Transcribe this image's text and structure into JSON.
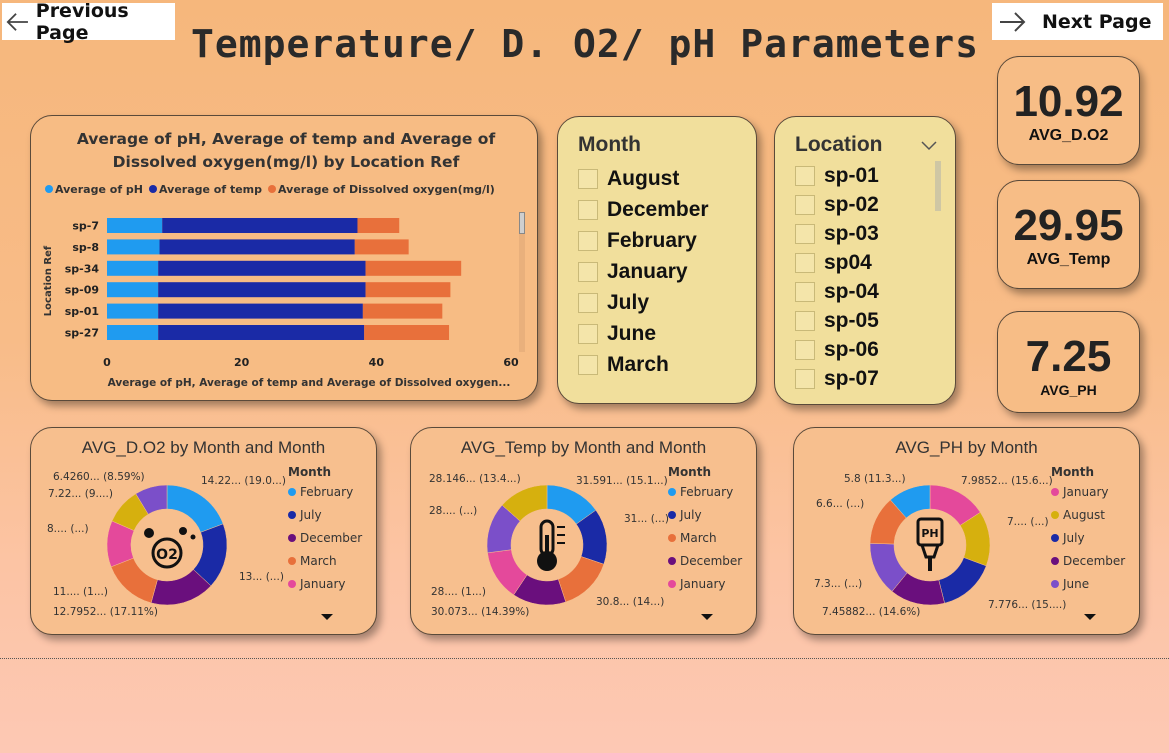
{
  "nav": {
    "prev_label": "Previous Page",
    "next_label": "Next Page"
  },
  "title": "Temperature/ D. O2/ pH Parameters",
  "kpis": [
    {
      "value": "10.92",
      "label": "AVG_D.O2"
    },
    {
      "value": "29.95",
      "label": "AVG_Temp"
    },
    {
      "value": "7.25",
      "label": "AVG_PH"
    }
  ],
  "colors": {
    "blue_light": "#1f9bf0",
    "blue_dark": "#1a2aa6",
    "orange": "#e8703b",
    "purple": "#6a0f7d",
    "pink": "#e4499b",
    "gold": "#d6b00e",
    "violet": "#7b4fc9"
  },
  "bar_chart": {
    "title": "Average of pH, Average of temp and Average of Dissolved oxygen(mg/l) by Location Ref",
    "legend": [
      "Average of pH",
      "Average of temp",
      "Average of Dissolved oxygen(mg/l)"
    ],
    "ylabel": "Location Ref",
    "xlabel": "Average of pH, Average of temp and Average of Dissolved oxygen...",
    "ticks": [
      "0",
      "20",
      "40",
      "60"
    ]
  },
  "month_slicer": {
    "title": "Month",
    "items": [
      "August",
      "December",
      "February",
      "January",
      "July",
      "June",
      "March"
    ]
  },
  "location_slicer": {
    "title": "Location",
    "items": [
      "sp-01",
      "sp-02",
      "sp-03",
      "sp04",
      "sp-04",
      "sp-05",
      "sp-06",
      "sp-07"
    ]
  },
  "donuts": [
    {
      "title": "AVG_D.O2 by Month and Month",
      "legend_title": "Month",
      "legend": [
        "February",
        "July",
        "December",
        "March",
        "January"
      ],
      "labels": [
        "6.4260... (8.59%)",
        "14.22... (19.0...)",
        "7.22... (9....)",
        "8.... (...)",
        "13... (...)",
        "11.... (1...)",
        "12.7952... (17.11%)"
      ]
    },
    {
      "title": "AVG_Temp by Month and Month",
      "legend_title": "Month",
      "legend": [
        "February",
        "July",
        "March",
        "December",
        "January"
      ],
      "labels": [
        "28.146... (13.4...)",
        "31.591... (15.1...)",
        "28.... (...)",
        "31... (...)",
        "28.... (1...)",
        "30.8... (14...)",
        "30.073... (14.39%)"
      ]
    },
    {
      "title": "AVG_PH by Month",
      "legend_title": "Month",
      "legend": [
        "January",
        "August",
        "July",
        "December",
        "June"
      ],
      "labels": [
        "5.8 (11.3...)",
        "7.9852... (15.6...)",
        "6.6... (...)",
        "7.... (...)",
        "7.3... (...)",
        "7.776... (15....)",
        "7.45882... (14.6%)"
      ]
    }
  ],
  "chart_data": [
    {
      "type": "bar",
      "stacked": true,
      "orientation": "horizontal",
      "title": "Average of pH, Average of temp and Average of Dissolved oxygen(mg/l) by Location Ref",
      "xlabel": "Average of pH, Average of temp and Average of Dissolved oxygen...",
      "ylabel": "Location Ref",
      "xlim": [
        0,
        60
      ],
      "categories": [
        "sp-7",
        "sp-8",
        "sp-34",
        "sp-09",
        "sp-01",
        "sp-27"
      ],
      "series": [
        {
          "name": "Average of pH",
          "color": "#1f9bf0",
          "values": [
            8.2,
            7.8,
            7.6,
            7.6,
            7.6,
            7.6
          ]
        },
        {
          "name": "Average of temp",
          "color": "#1a2aa6",
          "values": [
            29.0,
            29.0,
            30.8,
            30.8,
            30.4,
            30.6
          ]
        },
        {
          "name": "Average of Dissolved oxygen(mg/l)",
          "color": "#e8703b",
          "values": [
            6.2,
            8.0,
            14.2,
            12.6,
            11.8,
            12.6
          ]
        }
      ]
    },
    {
      "type": "pie",
      "donut": true,
      "title": "AVG_D.O2 by Month and Month",
      "categories": [
        "February",
        "July",
        "December",
        "March",
        "January",
        "Other (gold)",
        "Other (violet)"
      ],
      "values": [
        19.0,
        17.4,
        17.11,
        14.6,
        12.3,
        9.6,
        8.59
      ],
      "colors": [
        "#1f9bf0",
        "#1a2aa6",
        "#6a0f7d",
        "#e8703b",
        "#e4499b",
        "#d6b00e",
        "#7b4fc9"
      ]
    },
    {
      "type": "pie",
      "donut": true,
      "title": "AVG_Temp by Month and Month",
      "categories": [
        "February",
        "July",
        "March",
        "December",
        "January",
        "Other (violet)",
        "Other (gold)"
      ],
      "values": [
        15.1,
        15.0,
        14.7,
        14.39,
        13.5,
        13.6,
        13.4
      ],
      "colors": [
        "#1f9bf0",
        "#1a2aa6",
        "#e8703b",
        "#6a0f7d",
        "#e4499b",
        "#7b4fc9",
        "#d6b00e"
      ]
    },
    {
      "type": "pie",
      "donut": true,
      "title": "AVG_PH by Month",
      "categories": [
        "January",
        "August",
        "July",
        "December",
        "June",
        "Other (orange)",
        "Other (blue)"
      ],
      "values": [
        15.6,
        14.6,
        15.2,
        14.6,
        14.3,
        12.9,
        11.3
      ],
      "colors": [
        "#e4499b",
        "#d6b00e",
        "#1a2aa6",
        "#6a0f7d",
        "#7b4fc9",
        "#e8703b",
        "#1f9bf0"
      ]
    }
  ]
}
